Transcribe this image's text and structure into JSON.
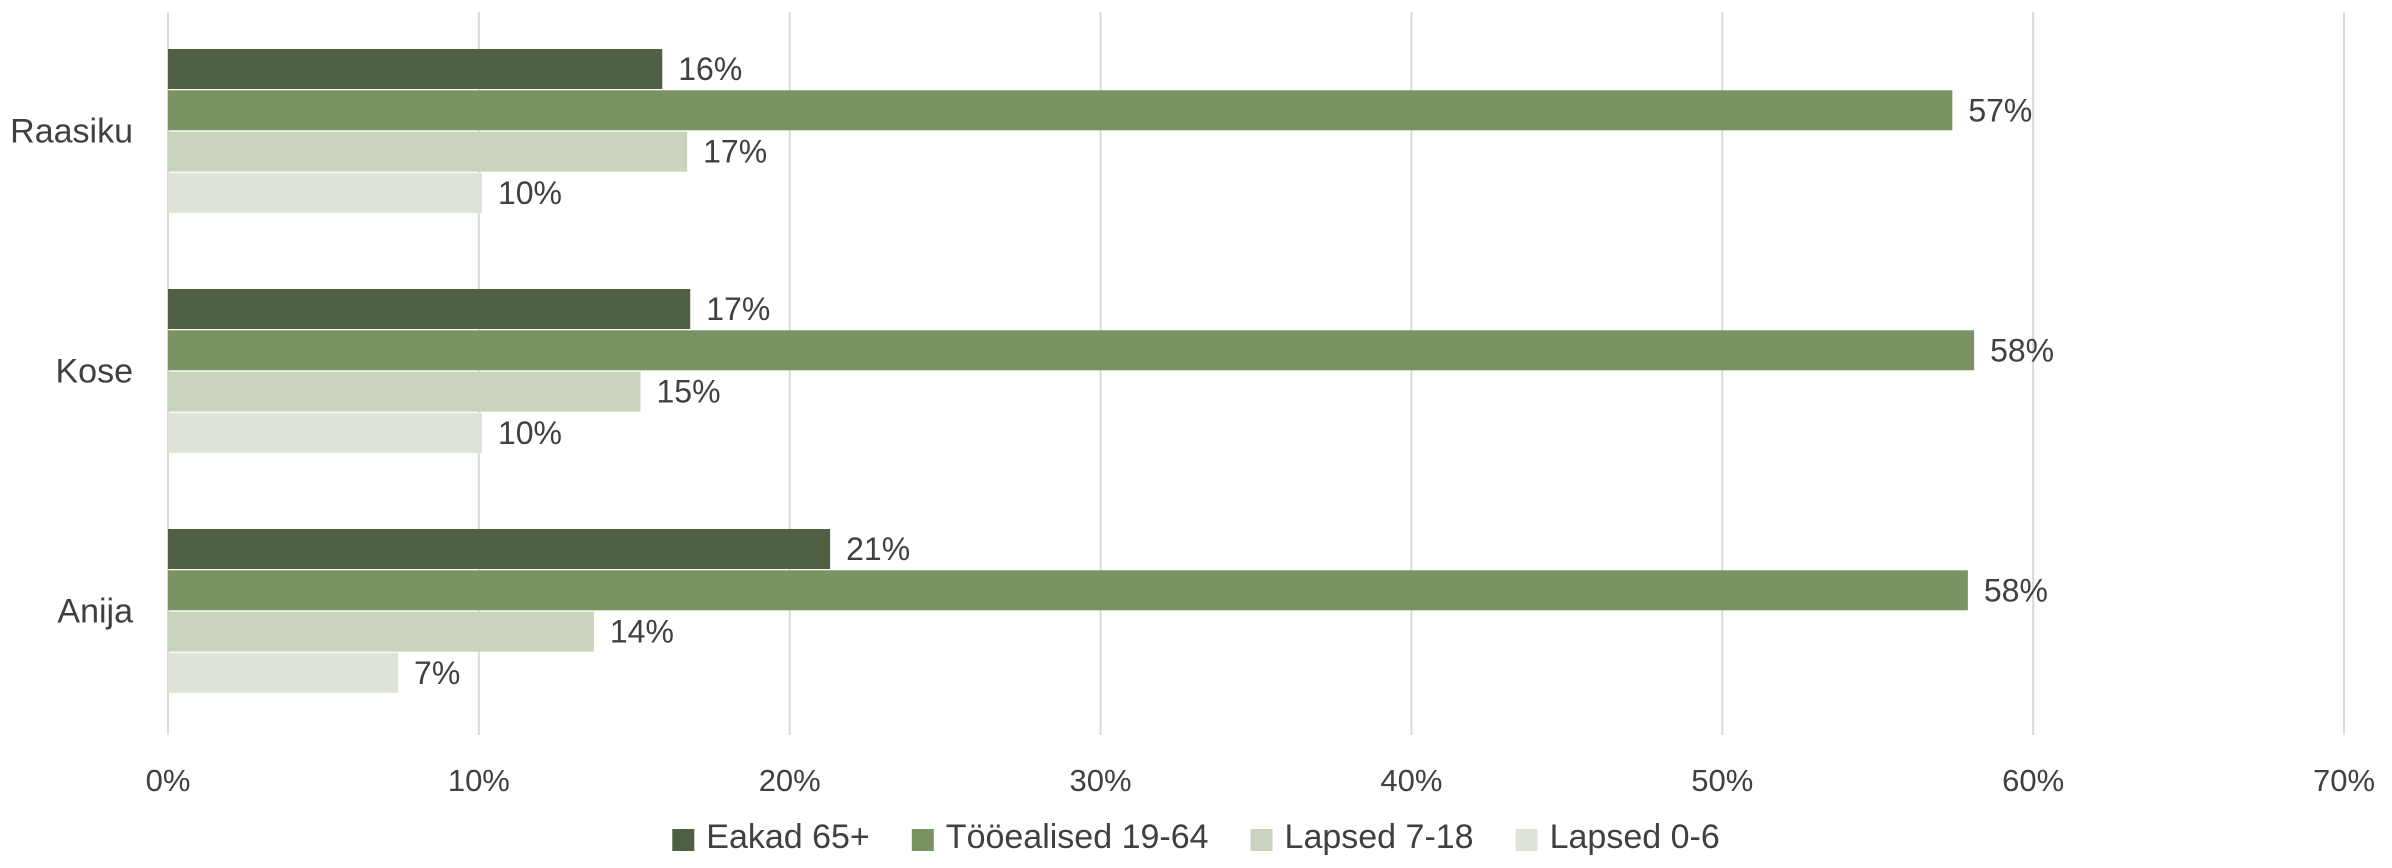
{
  "chart_data": {
    "type": "bar",
    "orientation": "horizontal",
    "title": "",
    "xlabel": "",
    "ylabel": "",
    "xlim": [
      0,
      70
    ],
    "x_ticks": [
      "0%",
      "10%",
      "20%",
      "30%",
      "40%",
      "50%",
      "60%",
      "70%"
    ],
    "grid": "vertical",
    "legend_position": "bottom",
    "categories": [
      "Raasiku",
      "Kose",
      "Anija"
    ],
    "series": [
      {
        "name": "Eakad 65+",
        "color": "#4f5f41",
        "values": [
          15.9,
          16.8,
          21.3
        ],
        "labels": [
          "16%",
          "17%",
          "21%"
        ]
      },
      {
        "name": "Tööealised 19-64",
        "color": "#7b9262",
        "values": [
          57.4,
          58.1,
          57.9
        ],
        "labels": [
          "57%",
          "58%",
          "58%"
        ]
      },
      {
        "name": "Lapsed 7-18",
        "color": "#c9d3be",
        "values": [
          16.7,
          15.2,
          13.7
        ],
        "labels": [
          "17%",
          "15%",
          "14%"
        ]
      },
      {
        "name": "Lapsed 0-6",
        "color": "#dde3d6",
        "values": [
          10.1,
          10.1,
          7.4
        ],
        "labels": [
          "10%",
          "10%",
          "7%"
        ]
      }
    ]
  }
}
